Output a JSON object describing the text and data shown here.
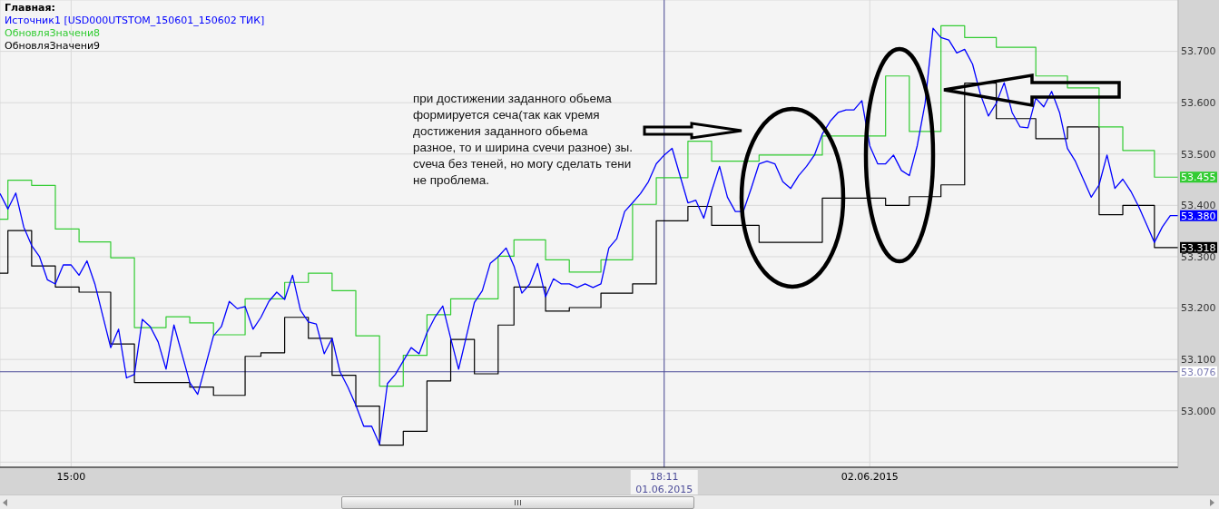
{
  "chart_data": {
    "type": "line",
    "title": "Главная:",
    "categories": [
      null,
      null,
      null,
      null,
      null,
      null,
      null,
      null,
      null,
      "15:00",
      null,
      null,
      null,
      null,
      null,
      null,
      null,
      null,
      null,
      null,
      null,
      null,
      null,
      null,
      null,
      null,
      null,
      null,
      null,
      null,
      null,
      null,
      null,
      null,
      null,
      null,
      null,
      null,
      null,
      null,
      null,
      null,
      null,
      null,
      null,
      null,
      null,
      null,
      null,
      null,
      null,
      null,
      null,
      null,
      null,
      null,
      null,
      null,
      null,
      null,
      null,
      null,
      null,
      null,
      null,
      null,
      null,
      null,
      null,
      null,
      null,
      null,
      null,
      null,
      null,
      null,
      null,
      null,
      null,
      null,
      null,
      null,
      null,
      null,
      "18:11\n01.06.2015",
      null,
      null,
      null,
      null,
      null,
      null,
      null,
      null,
      null,
      null,
      null,
      null,
      null,
      null,
      null,
      null,
      null,
      null,
      null,
      null,
      null,
      null,
      null,
      null,
      null,
      "02.06.2015",
      null,
      null,
      null,
      null,
      null,
      null,
      null,
      null,
      null,
      null,
      null,
      null,
      null,
      null,
      null,
      null,
      null,
      null,
      null,
      null,
      null,
      null,
      null,
      null,
      null,
      null,
      null,
      null,
      null,
      null,
      null,
      null,
      null,
      null,
      null,
      null,
      null,
      null,
      null
    ],
    "series": [
      {
        "name": "Источник1 [USD000UTSTOM_150601_150602 ТИК]",
        "color": "#0000ff",
        "values": [
          53.423,
          53.393,
          53.424,
          53.358,
          53.322,
          53.3,
          53.255,
          53.247,
          53.284,
          53.284,
          53.264,
          53.292,
          53.247,
          53.185,
          53.123,
          53.159,
          53.064,
          53.071,
          53.178,
          53.164,
          53.134,
          53.081,
          53.167,
          53.111,
          53.055,
          53.032,
          53.088,
          53.146,
          53.164,
          53.213,
          53.199,
          53.203,
          53.159,
          53.182,
          53.213,
          53.231,
          53.217,
          53.264,
          53.196,
          53.173,
          53.169,
          53.111,
          53.141,
          53.076,
          53.046,
          53.011,
          52.97,
          52.97,
          52.935,
          53.053,
          53.071,
          53.097,
          53.123,
          53.111,
          53.152,
          53.182,
          53.204,
          53.141,
          53.081,
          53.146,
          53.211,
          53.234,
          53.287,
          53.3,
          53.317,
          53.282,
          53.229,
          53.247,
          53.287,
          53.222,
          53.257,
          53.247,
          53.247,
          53.24,
          53.247,
          53.24,
          53.247,
          53.317,
          53.335,
          53.388,
          53.405,
          53.423,
          53.446,
          53.481,
          53.498,
          53.511,
          53.458,
          53.405,
          53.41,
          53.375,
          53.428,
          53.476,
          53.416,
          53.388,
          53.388,
          53.433,
          53.481,
          53.486,
          53.481,
          53.446,
          53.433,
          53.458,
          53.476,
          53.498,
          53.539,
          53.564,
          53.581,
          53.586,
          53.586,
          53.604,
          53.516,
          53.481,
          53.481,
          53.498,
          53.468,
          53.458,
          53.516,
          53.599,
          53.745,
          53.727,
          53.722,
          53.697,
          53.704,
          53.675,
          53.616,
          53.574,
          53.599,
          53.639,
          53.581,
          53.553,
          53.551,
          53.609,
          53.592,
          53.622,
          53.581,
          53.511,
          53.486,
          53.451,
          53.416,
          53.44,
          53.498,
          53.433,
          53.451,
          53.428,
          53.398,
          53.363,
          53.328,
          53.358,
          53.38,
          53.38
        ],
        "value_labels": [
          null,
          null,
          null,
          null,
          null,
          null,
          null,
          null,
          null,
          null,
          null,
          null,
          null,
          null,
          null,
          null,
          null,
          null,
          null,
          null,
          null,
          null,
          null,
          null,
          null,
          null,
          null,
          null,
          null,
          null,
          null,
          null,
          null,
          null,
          null,
          null,
          null,
          null,
          null,
          null,
          null,
          null,
          null,
          null,
          null,
          null,
          null,
          null,
          null,
          null,
          null,
          null,
          null,
          null,
          null,
          null,
          null,
          null,
          null,
          null,
          null,
          null,
          null,
          null,
          null,
          null,
          null,
          null,
          null,
          null,
          null,
          null,
          null,
          null,
          null,
          null,
          null,
          null,
          null,
          null,
          null,
          null,
          null,
          null,
          null,
          null,
          null,
          null,
          null,
          null,
          null,
          null,
          null,
          null,
          null,
          null,
          null,
          null,
          null,
          null,
          null,
          null,
          null,
          null,
          null,
          null,
          null,
          null,
          null,
          null,
          null,
          null,
          null,
          null,
          null,
          null,
          null,
          null,
          null,
          null,
          null,
          null,
          null,
          null,
          null,
          null,
          null,
          null,
          null,
          null,
          null,
          null,
          null,
          null,
          null,
          null,
          null,
          null,
          null,
          null,
          null,
          null,
          null,
          null,
          null,
          null,
          null,
          null,
          null,
          "53.380"
        ]
      },
      {
        "name": "ОбновляЗначени8",
        "color": "#33cc33",
        "type": "step",
        "values": [
          53.373,
          53.449,
          53.449,
          53.449,
          53.439,
          53.439,
          53.439,
          53.354,
          53.354,
          53.354,
          53.329,
          53.329,
          53.329,
          53.329,
          53.298,
          53.298,
          53.298,
          53.162,
          53.162,
          53.162,
          53.162,
          53.183,
          53.183,
          53.183,
          53.171,
          53.171,
          53.171,
          53.148,
          53.148,
          53.148,
          53.148,
          53.218,
          53.218,
          53.218,
          53.218,
          53.218,
          53.25,
          53.25,
          53.25,
          53.268,
          53.268,
          53.268,
          53.234,
          53.234,
          53.234,
          53.146,
          53.146,
          53.146,
          53.048,
          53.048,
          53.048,
          53.108,
          53.108,
          53.108,
          53.187,
          53.187,
          53.187,
          53.218,
          53.218,
          53.218,
          53.218,
          53.218,
          53.218,
          53.301,
          53.301,
          53.333,
          53.333,
          53.333,
          53.333,
          53.294,
          53.294,
          53.294,
          53.27,
          53.27,
          53.27,
          53.27,
          53.294,
          53.294,
          53.294,
          53.294,
          53.402,
          53.402,
          53.402,
          53.454,
          53.454,
          53.454,
          53.454,
          53.525,
          53.525,
          53.525,
          53.486,
          53.486,
          53.486,
          53.486,
          53.486,
          53.486,
          53.498,
          53.498,
          53.498,
          53.498,
          53.498,
          53.498,
          53.498,
          53.498,
          53.535,
          53.535,
          53.535,
          53.535,
          53.535,
          53.535,
          53.535,
          53.535,
          53.652,
          53.652,
          53.652,
          53.544,
          53.544,
          53.544,
          53.544,
          53.75,
          53.75,
          53.75,
          53.727,
          53.727,
          53.727,
          53.727,
          53.708,
          53.708,
          53.708,
          53.708,
          53.708,
          53.652,
          53.652,
          53.652,
          53.652,
          53.629,
          53.629,
          53.629,
          53.629,
          53.553,
          53.553,
          53.553,
          53.507,
          53.507,
          53.507,
          53.507,
          53.455,
          53.455,
          53.455,
          53.455
        ],
        "value_labels": [
          null,
          null,
          null,
          null,
          null,
          null,
          null,
          null,
          null,
          null,
          null,
          null,
          null,
          null,
          null,
          null,
          null,
          null,
          null,
          null,
          null,
          null,
          null,
          null,
          null,
          null,
          null,
          null,
          null,
          null,
          null,
          null,
          null,
          null,
          null,
          null,
          null,
          null,
          null,
          null,
          null,
          null,
          null,
          null,
          null,
          null,
          null,
          null,
          null,
          null,
          null,
          null,
          null,
          null,
          null,
          null,
          null,
          null,
          null,
          null,
          null,
          null,
          null,
          null,
          null,
          null,
          null,
          null,
          null,
          null,
          null,
          null,
          null,
          null,
          null,
          null,
          null,
          null,
          null,
          null,
          null,
          null,
          null,
          null,
          null,
          null,
          null,
          null,
          null,
          null,
          null,
          null,
          null,
          null,
          null,
          null,
          null,
          null,
          null,
          null,
          null,
          null,
          null,
          null,
          null,
          null,
          null,
          null,
          null,
          null,
          null,
          null,
          null,
          null,
          null,
          null,
          null,
          null,
          null,
          null,
          null,
          null,
          null,
          null,
          null,
          null,
          null,
          null,
          null,
          null,
          null,
          null,
          null,
          null,
          null,
          null,
          null,
          null,
          null,
          null,
          null,
          null,
          null,
          null,
          null,
          null,
          null,
          null,
          null,
          "53.455"
        ]
      },
      {
        "name": "ОбновляЗначени9",
        "color": "#000000",
        "type": "step",
        "values": [
          53.268,
          53.351,
          53.351,
          53.351,
          53.282,
          53.282,
          53.282,
          53.241,
          53.241,
          53.241,
          53.231,
          53.231,
          53.231,
          53.231,
          53.13,
          53.13,
          53.13,
          53.055,
          53.055,
          53.055,
          53.055,
          53.055,
          53.055,
          53.055,
          53.046,
          53.046,
          53.046,
          53.03,
          53.03,
          53.03,
          53.03,
          53.106,
          53.106,
          53.113,
          53.113,
          53.113,
          53.182,
          53.182,
          53.182,
          53.141,
          53.141,
          53.141,
          53.069,
          53.069,
          53.069,
          53.009,
          53.009,
          53.009,
          52.933,
          52.933,
          52.933,
          52.96,
          52.96,
          52.96,
          53.058,
          53.058,
          53.058,
          53.139,
          53.139,
          53.139,
          53.072,
          53.072,
          53.072,
          53.167,
          53.167,
          53.241,
          53.241,
          53.241,
          53.241,
          53.194,
          53.194,
          53.194,
          53.201,
          53.201,
          53.201,
          53.201,
          53.229,
          53.229,
          53.229,
          53.229,
          53.247,
          53.247,
          53.247,
          53.37,
          53.37,
          53.37,
          53.37,
          53.398,
          53.398,
          53.398,
          53.361,
          53.361,
          53.361,
          53.361,
          53.361,
          53.361,
          53.328,
          53.328,
          53.328,
          53.328,
          53.328,
          53.328,
          53.328,
          53.328,
          53.414,
          53.414,
          53.414,
          53.414,
          53.414,
          53.414,
          53.414,
          53.414,
          53.4,
          53.4,
          53.4,
          53.417,
          53.417,
          53.417,
          53.417,
          53.44,
          53.44,
          53.44,
          53.638,
          53.638,
          53.638,
          53.638,
          53.569,
          53.569,
          53.569,
          53.569,
          53.569,
          53.53,
          53.53,
          53.53,
          53.53,
          53.553,
          53.553,
          53.553,
          53.553,
          53.382,
          53.382,
          53.382,
          53.4,
          53.4,
          53.4,
          53.4,
          53.318,
          53.318,
          53.318,
          53.318
        ],
        "value_labels": [
          null,
          null,
          null,
          null,
          null,
          null,
          null,
          null,
          null,
          null,
          null,
          null,
          null,
          null,
          null,
          null,
          null,
          null,
          null,
          null,
          null,
          null,
          null,
          null,
          null,
          null,
          null,
          null,
          null,
          null,
          null,
          null,
          null,
          null,
          null,
          null,
          null,
          null,
          null,
          null,
          null,
          null,
          null,
          null,
          null,
          null,
          null,
          null,
          null,
          null,
          null,
          null,
          null,
          null,
          null,
          null,
          null,
          null,
          null,
          null,
          null,
          null,
          null,
          null,
          null,
          null,
          null,
          null,
          null,
          null,
          null,
          null,
          null,
          null,
          null,
          null,
          null,
          null,
          null,
          null,
          null,
          null,
          null,
          null,
          null,
          null,
          null,
          null,
          null,
          null,
          null,
          null,
          null,
          null,
          null,
          null,
          null,
          null,
          null,
          null,
          null,
          null,
          null,
          null,
          null,
          null,
          null,
          null,
          null,
          null,
          null,
          null,
          null,
          null,
          null,
          null,
          null,
          null,
          null,
          null,
          null,
          null,
          null,
          null,
          null,
          null,
          null,
          null,
          null,
          null,
          null,
          null,
          null,
          null,
          null,
          null,
          null,
          null,
          null,
          null,
          null,
          null,
          null,
          null,
          null,
          null,
          null,
          null,
          null,
          "53.318"
        ]
      }
    ],
    "ylim": [
      52.89,
      53.8
    ],
    "yticks": [
      {
        "value": 52.9,
        "label": null
      },
      {
        "value": 53.0,
        "label": "53.000"
      },
      {
        "value": 53.1,
        "label": "53.100"
      },
      {
        "value": 53.2,
        "label": "53.200"
      },
      {
        "value": 53.3,
        "label": "53.300"
      },
      {
        "value": 53.4,
        "label": "53.400"
      },
      {
        "value": 53.5,
        "label": "53.500"
      },
      {
        "value": 53.6,
        "label": "53.600"
      },
      {
        "value": 53.7,
        "label": "53.700"
      }
    ],
    "ref_lines": [
      {
        "axis": "x",
        "value": "18:11\n01.06.2015",
        "color": "#4d4d99"
      },
      {
        "axis": "y",
        "value": 53.076,
        "label": "53.076",
        "color": "#4d4d99"
      }
    ],
    "annotations": [
      "при достижении заданного обьема\nформируется сеча(так как vремя\nдостижения заданного обьема\nразное, то и ширина сvечи разное) зы.\nсvеча без теней, но могу сделать тени\nне проблема."
    ],
    "grid": true,
    "legend": "top left"
  }
}
